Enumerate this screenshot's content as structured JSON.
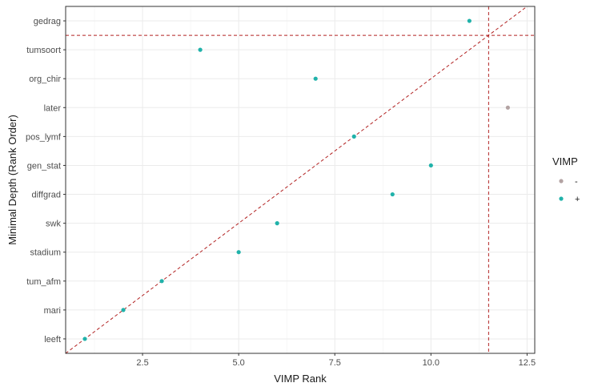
{
  "chart_data": {
    "type": "scatter",
    "xlabel": "VIMP Rank",
    "ylabel": "Minimal Depth (Rank Order)",
    "xlim": [
      0.5,
      12.7
    ],
    "ylim": [
      0.5,
      12.5
    ],
    "x_ticks": [
      2.5,
      5.0,
      7.5,
      10.0,
      12.5
    ],
    "x_tick_labels": [
      "2.5",
      "5.0",
      "7.5",
      "10.0",
      "12.5"
    ],
    "y_categories": [
      "leeft",
      "mari",
      "tum_afm",
      "stadium",
      "swk",
      "diffgrad",
      "gen_stat",
      "pos_lymf",
      "later",
      "org_chir",
      "tumsoort",
      "gedrag"
    ],
    "points": [
      {
        "label": "leeft",
        "x": 1,
        "y": 1,
        "vimp": "+"
      },
      {
        "label": "mari",
        "x": 2,
        "y": 2,
        "vimp": "+"
      },
      {
        "label": "tum_afm",
        "x": 3,
        "y": 3,
        "vimp": "+"
      },
      {
        "label": "stadium",
        "x": 5,
        "y": 4,
        "vimp": "+"
      },
      {
        "label": "swk",
        "x": 6,
        "y": 5,
        "vimp": "+"
      },
      {
        "label": "diffgrad",
        "x": 9,
        "y": 6,
        "vimp": "+"
      },
      {
        "label": "gen_stat",
        "x": 10,
        "y": 7,
        "vimp": "+"
      },
      {
        "label": "pos_lymf",
        "x": 8,
        "y": 8,
        "vimp": "+"
      },
      {
        "label": "later",
        "x": 12,
        "y": 9,
        "vimp": "-"
      },
      {
        "label": "org_chir",
        "x": 7,
        "y": 10,
        "vimp": "+"
      },
      {
        "label": "tumsoort",
        "x": 4,
        "y": 11,
        "vimp": "+"
      },
      {
        "label": "gedrag",
        "x": 11,
        "y": 12,
        "vimp": "+"
      }
    ],
    "reference_lines": {
      "diagonal": "y = x",
      "vertical_x": 11.5,
      "horizontal_y": 11.5
    },
    "legend": {
      "title": "VIMP",
      "position": "right",
      "entries": [
        {
          "label": "-",
          "color": "#b3a3a3"
        },
        {
          "label": "+",
          "color": "#20b2aa"
        }
      ]
    },
    "grid": true,
    "colors": {
      "positive": "#20b2aa",
      "negative": "#b3a3a3",
      "reference_line": "#b22222"
    }
  }
}
